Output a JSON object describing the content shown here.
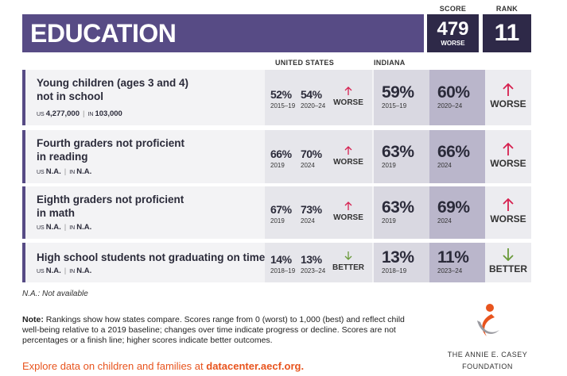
{
  "header": {
    "title": "EDUCATION",
    "score_label": "SCORE",
    "score": "479",
    "score_note": "WORSE",
    "rank_label": "RANK",
    "rank": "11"
  },
  "columns": {
    "us": "UNITED STATES",
    "state": "INDIANA"
  },
  "rows": [
    {
      "label": "Young children (ages 3 and 4) not in school",
      "us_count_label": "US",
      "us_count": "4,277,000",
      "state_count_label": "IN",
      "state_count": "103,000",
      "us": [
        {
          "value": "52%",
          "period": "2015–19"
        },
        {
          "value": "54%",
          "period": "2020–24"
        }
      ],
      "us_trend": "WORSE",
      "state": [
        {
          "value": "59%",
          "period": "2015–19"
        },
        {
          "value": "60%",
          "period": "2020–24"
        }
      ],
      "state_trend": "WORSE"
    },
    {
      "label": "Fourth graders not proficient in reading",
      "us_count_label": "US",
      "us_count": "N.A.",
      "state_count_label": "IN",
      "state_count": "N.A.",
      "us": [
        {
          "value": "66%",
          "period": "2019"
        },
        {
          "value": "70%",
          "period": "2024"
        }
      ],
      "us_trend": "WORSE",
      "state": [
        {
          "value": "63%",
          "period": "2019"
        },
        {
          "value": "66%",
          "period": "2024"
        }
      ],
      "state_trend": "WORSE"
    },
    {
      "label": "Eighth graders not proficient in math",
      "us_count_label": "US",
      "us_count": "N.A.",
      "state_count_label": "IN",
      "state_count": "N.A.",
      "us": [
        {
          "value": "67%",
          "period": "2019"
        },
        {
          "value": "73%",
          "period": "2024"
        }
      ],
      "us_trend": "WORSE",
      "state": [
        {
          "value": "63%",
          "period": "2019"
        },
        {
          "value": "69%",
          "period": "2024"
        }
      ],
      "state_trend": "WORSE"
    },
    {
      "label": "High school students not graduating on time",
      "us_count_label": "US",
      "us_count": "N.A.",
      "state_count_label": "IN",
      "state_count": "N.A.",
      "us": [
        {
          "value": "14%",
          "period": "2018–19"
        },
        {
          "value": "13%",
          "period": "2023–24"
        }
      ],
      "us_trend": "BETTER",
      "state": [
        {
          "value": "13%",
          "period": "2018–19"
        },
        {
          "value": "11%",
          "period": "2023–24"
        }
      ],
      "state_trend": "BETTER"
    }
  ],
  "footnote": "N.A.: Not available",
  "note": {
    "label": "Note:",
    "text": "Rankings show how states compare. Scores range from 0 (worst) to 1,000 (best) and reflect child well-being relative to a 2019 baseline; changes over time indicate progress or decline. Scores are not percentages or a finish line; higher scores indicate better outcomes."
  },
  "link": {
    "text": "Explore data on children and families at",
    "url": "datacenter.aecf.org."
  },
  "logo": {
    "line1": "THE ANNIE E. CASEY",
    "line2": "FOUNDATION"
  }
}
